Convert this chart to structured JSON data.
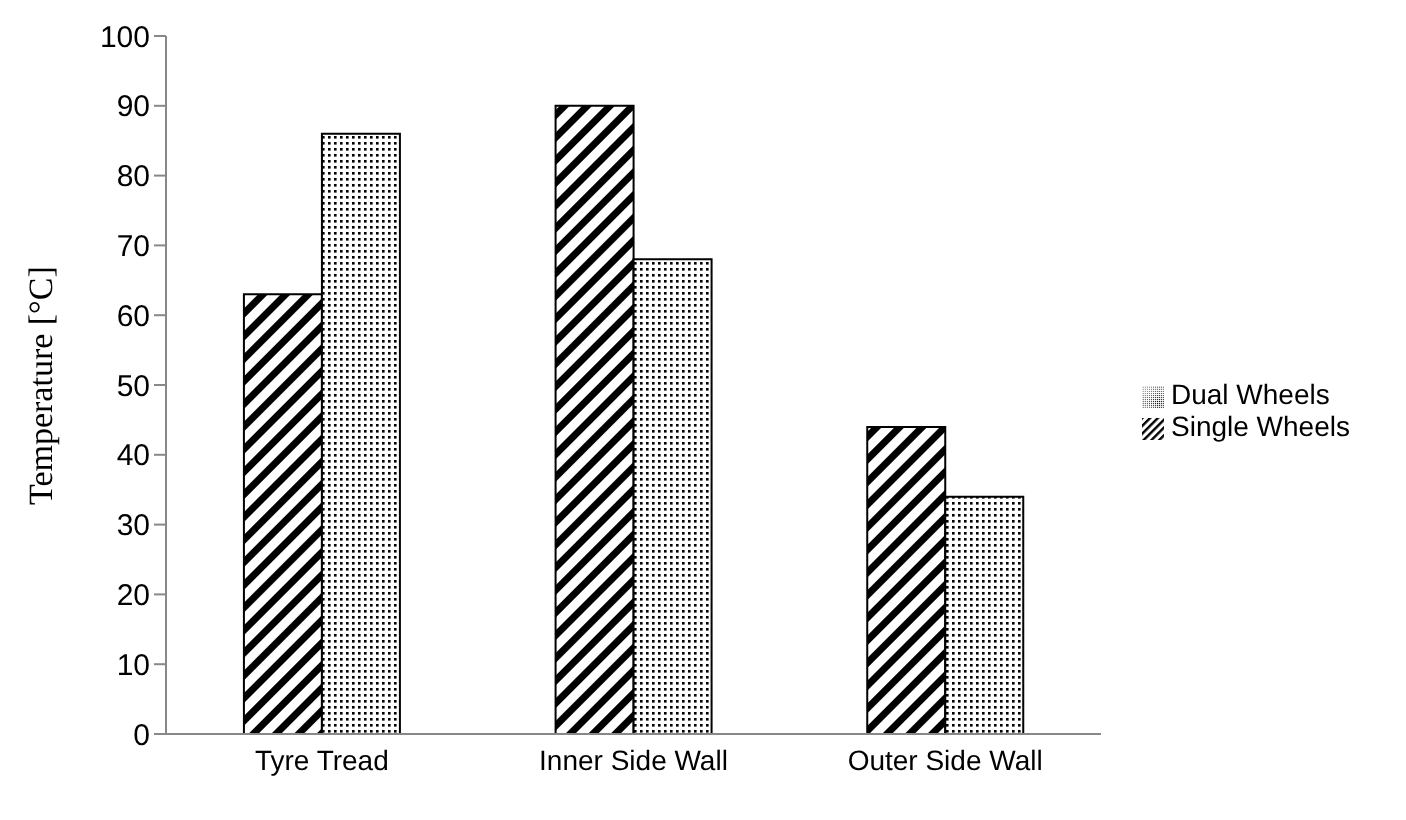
{
  "chart_data": {
    "type": "bar",
    "ylabel": "Temperature [°C]",
    "categories": [
      "Tyre Tread",
      "Inner Side Wall",
      "Outer Side Wall"
    ],
    "series": [
      {
        "name": "Single Wheels",
        "color": "#000000",
        "values": [
          63,
          90,
          44
        ]
      },
      {
        "name": "Dual Wheels",
        "color": "#000000",
        "values": [
          86,
          68,
          34
        ]
      }
    ],
    "ylim": [
      0,
      100
    ],
    "yticks": [
      0,
      10,
      20,
      30,
      40,
      50,
      60,
      70,
      80,
      90,
      100
    ],
    "grid": false,
    "legend": "right"
  }
}
